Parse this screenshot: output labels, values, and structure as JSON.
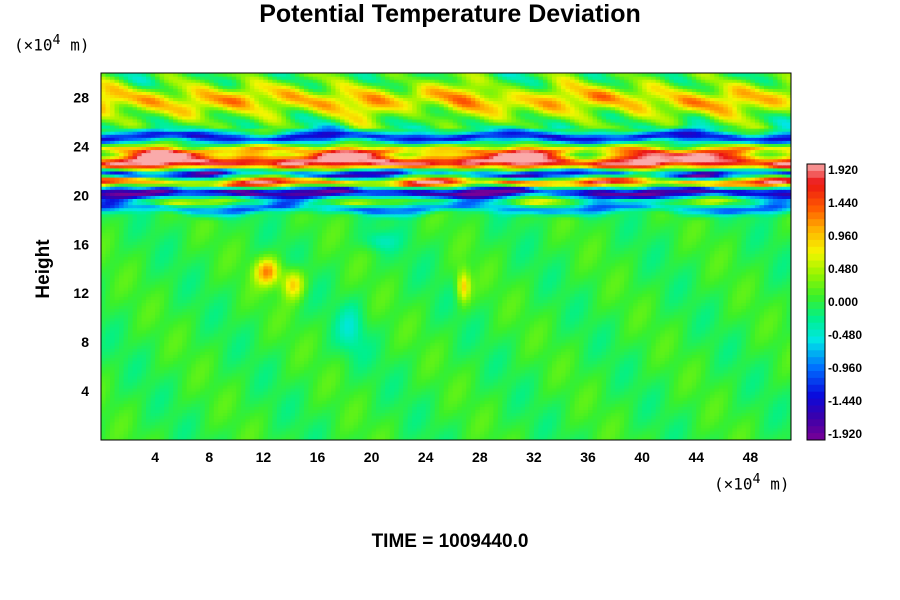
{
  "chart_data": {
    "type": "heatmap",
    "title": "Potential Temperature Deviation",
    "xlabel": "",
    "ylabel": "Height",
    "x_unit_prefix": "(×10",
    "x_unit_exp": "4",
    "x_unit_suffix": " m)",
    "y_unit_prefix": "(×10",
    "y_unit_exp": "4",
    "y_unit_suffix": " m)",
    "xlim": [
      0,
      51
    ],
    "ylim": [
      0,
      30
    ],
    "x_ticks": [
      4,
      8,
      12,
      16,
      20,
      24,
      28,
      32,
      36,
      40,
      44,
      48
    ],
    "y_ticks": [
      4,
      8,
      12,
      16,
      20,
      24,
      28
    ],
    "colorbar": {
      "min": -1.92,
      "max": 1.92,
      "labels": [
        "1.920",
        "1.440",
        "0.960",
        "0.480",
        "0.000",
        "-0.480",
        "-0.960",
        "-1.440",
        "-1.920"
      ]
    },
    "bands": [
      {
        "y": 27.8,
        "half_width": 1.2,
        "value": 0.85
      },
      {
        "y": 24.8,
        "half_width": 0.45,
        "value": -1.3
      },
      {
        "y": 23.7,
        "half_width": 0.4,
        "value": 0.9
      },
      {
        "y": 22.7,
        "half_width": 0.7,
        "value": 1.95
      },
      {
        "y": 21.8,
        "half_width": 0.45,
        "value": -1.95
      },
      {
        "y": 21.1,
        "half_width": 0.45,
        "value": 1.95
      },
      {
        "y": 20.3,
        "half_width": 0.55,
        "value": -1.95
      },
      {
        "y": 19.6,
        "half_width": 0.4,
        "value": 0.6
      },
      {
        "y": 19.0,
        "half_width": 0.4,
        "value": -0.9
      }
    ],
    "patches": [
      {
        "x": 12.3,
        "y": 13.8,
        "sx": 0.9,
        "sy": 1.1,
        "value": 1.1
      },
      {
        "x": 14.2,
        "y": 12.8,
        "sx": 0.8,
        "sy": 1.2,
        "value": 0.9
      },
      {
        "x": 26.8,
        "y": 12.6,
        "sx": 0.5,
        "sy": 1.3,
        "value": 0.9
      },
      {
        "x": 20.5,
        "y": 16.3,
        "sx": 1.2,
        "sy": 0.8,
        "value": -0.35
      },
      {
        "x": 18.5,
        "y": 9.0,
        "sx": 1.0,
        "sy": 2.0,
        "value": -0.35
      }
    ]
  },
  "time_label": "TIME = 1009440.0"
}
